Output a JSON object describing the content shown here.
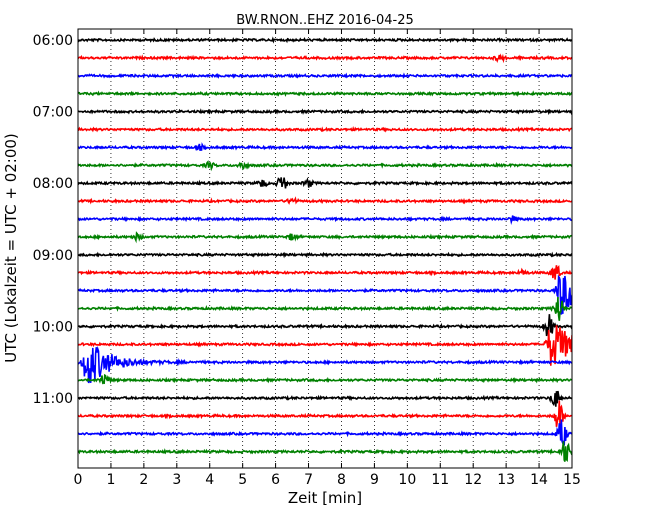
{
  "chart_data": {
    "type": "line",
    "title": "BW.RNON..EHZ 2016-04-25",
    "xlabel": "Zeit  [min]",
    "ylabel": "UTC (Lokalzeit = UTC + 02:00)",
    "xlim": [
      0,
      15
    ],
    "x_ticks": [
      0,
      1,
      2,
      3,
      4,
      5,
      6,
      7,
      8,
      9,
      10,
      11,
      12,
      13,
      14,
      15
    ],
    "y_ticks": [
      "06:00",
      "07:00",
      "08:00",
      "09:00",
      "10:00",
      "11:00"
    ],
    "trace_start": "06:00",
    "trace_interval_min": 15,
    "trace_count": 24,
    "trace_colors": [
      "#000000",
      "#ff0000",
      "#0000ff",
      "#008000"
    ],
    "grid": "vertical dotted at each minute",
    "events": [
      {
        "trace": 1,
        "x": 12.8,
        "amp": 0.5
      },
      {
        "trace": 6,
        "x": 3.7,
        "amp": 0.4
      },
      {
        "trace": 7,
        "x": 4.0,
        "amp": 0.5
      },
      {
        "trace": 7,
        "x": 5.0,
        "amp": 0.6
      },
      {
        "trace": 8,
        "x": 5.6,
        "amp": 0.6
      },
      {
        "trace": 8,
        "x": 6.2,
        "amp": 1.4
      },
      {
        "trace": 8,
        "x": 7.0,
        "amp": 0.6
      },
      {
        "trace": 9,
        "x": 6.5,
        "amp": 0.5
      },
      {
        "trace": 10,
        "x": 13.2,
        "amp": 0.4
      },
      {
        "trace": 11,
        "x": 1.8,
        "amp": 0.5
      },
      {
        "trace": 11,
        "x": 6.5,
        "amp": 0.5
      },
      {
        "trace": 13,
        "x": 13.5,
        "amp": 0.4
      },
      {
        "trace": 18,
        "x": 0.3,
        "amp": 4.0
      },
      {
        "trace": 19,
        "x": 0.8,
        "amp": 1.0
      },
      {
        "trace": 13,
        "x": 14.5,
        "amp": 1.5
      },
      {
        "trace": 14,
        "x": 14.7,
        "amp": 4.0
      },
      {
        "trace": 15,
        "x": 14.6,
        "amp": 2.5
      },
      {
        "trace": 16,
        "x": 14.3,
        "amp": 2.0
      },
      {
        "trace": 17,
        "x": 14.4,
        "amp": 4.0
      },
      {
        "trace": 20,
        "x": 14.5,
        "amp": 1.5
      },
      {
        "trace": 21,
        "x": 14.6,
        "amp": 2.5
      },
      {
        "trace": 22,
        "x": 14.7,
        "amp": 2.5
      },
      {
        "trace": 23,
        "x": 14.8,
        "amp": 2.0
      }
    ]
  }
}
